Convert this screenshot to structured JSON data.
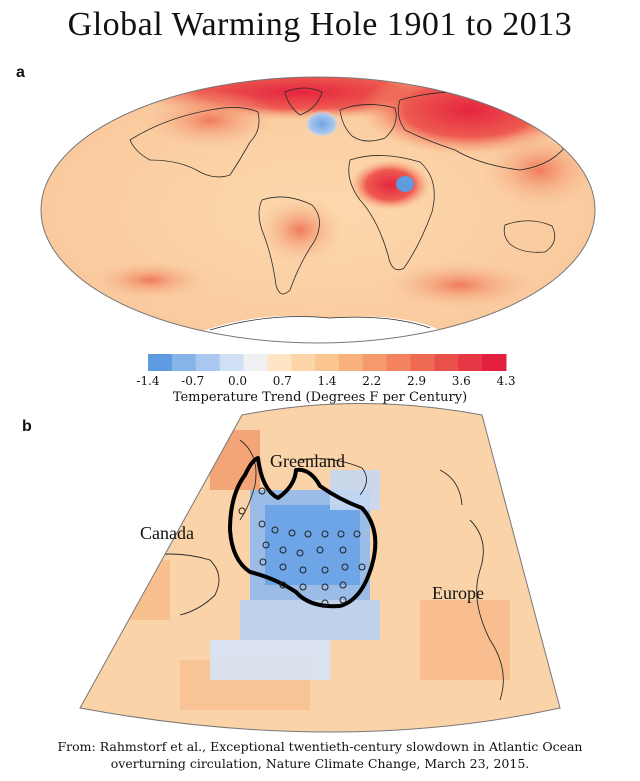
{
  "title": "Global Warming Hole 1901 to 2013",
  "panels": {
    "a": "a",
    "b": "b"
  },
  "legend": {
    "title": "Temperature Trend (Degrees F per Century)",
    "ticks": [
      "-1.4",
      "-0.7",
      "0.0",
      "0.7",
      "1.4",
      "2.2",
      "2.9",
      "3.6",
      "4.3"
    ],
    "colors": [
      "#5e9be0",
      "#86b3e8",
      "#aac8ef",
      "#cfdff4",
      "#eef0f2",
      "#fde5c6",
      "#fcd6a9",
      "#fbc590",
      "#f8b07c",
      "#f59a6c",
      "#f2835e",
      "#ee6a53",
      "#ea504a",
      "#e63745",
      "#e21f3f"
    ]
  },
  "regions": {
    "greenland": "Greenland",
    "canada": "Canada",
    "europe": "Europe"
  },
  "caption": {
    "line1": "From: Rahmstorf et al., Exceptional twentieth-century slowdown in Atlantic Ocean",
    "line2": "overturning circulation, Nature Climate Change, March 23, 2015."
  }
}
